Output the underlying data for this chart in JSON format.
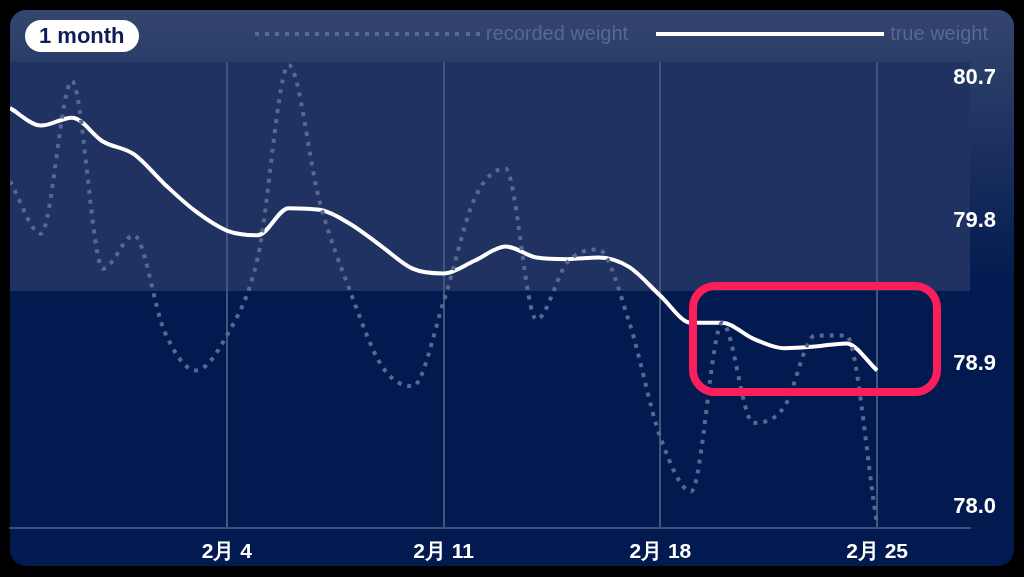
{
  "chart_data": {
    "type": "line",
    "subtitle": "1 month",
    "x": [
      "--01-28",
      "--01-29",
      "--01-30",
      "--01-31",
      "--02-01",
      "--02-02",
      "--02-03",
      "--02-04",
      "--02-05",
      "--02-06",
      "--02-07",
      "--02-08",
      "--02-09",
      "--02-10",
      "--02-11",
      "--02-12",
      "--02-13",
      "--02-14",
      "--02-15",
      "--02-16",
      "--02-17",
      "--02-18",
      "--02-19",
      "--02-20",
      "--02-21",
      "--02-22",
      "--02-23",
      "--02-24",
      "--02-25"
    ],
    "series": [
      {
        "name": "recorded weight",
        "color": "#56698f",
        "line_style": "dotted",
        "values": [
          80.05,
          79.72,
          80.68,
          79.5,
          79.71,
          79.1,
          78.86,
          79.08,
          79.57,
          80.78,
          79.92,
          79.35,
          78.89,
          78.76,
          79.29,
          79.94,
          80.13,
          79.18,
          79.54,
          79.62,
          79.16,
          78.44,
          78.1,
          79.16,
          78.53,
          78.63,
          79.08,
          79.08,
          77.89
        ]
      },
      {
        "name": "true weight",
        "color": "#ffffff",
        "line_style": "solid",
        "values": [
          80.51,
          80.4,
          80.45,
          80.3,
          80.22,
          80.03,
          79.86,
          79.74,
          79.71,
          79.88,
          79.87,
          79.78,
          79.64,
          79.5,
          79.47,
          79.55,
          79.64,
          79.57,
          79.56,
          79.57,
          79.51,
          79.33,
          79.16,
          79.16,
          79.06,
          79.0,
          79.01,
          79.03,
          78.86
        ]
      }
    ],
    "xlim": [
      "--01-28",
      "--02-28"
    ],
    "xticks": [
      {
        "value": "--02-04",
        "label": "2月 4"
      },
      {
        "value": "--02-11",
        "label": "2月 11"
      },
      {
        "value": "--02-18",
        "label": "2月 18"
      },
      {
        "value": "--02-25",
        "label": "2月 25"
      }
    ],
    "ylim": [
      77.87,
      80.8
    ],
    "yticks": [
      {
        "value": 78,
        "label": "78.0"
      },
      78.9,
      79.8,
      80.7
    ],
    "bands": [
      {
        "axis": "y",
        "from": 79.36,
        "to": 80.8,
        "color": "#1f3262"
      }
    ],
    "grid": "x",
    "legend": "top right",
    "marker": "none"
  }
}
